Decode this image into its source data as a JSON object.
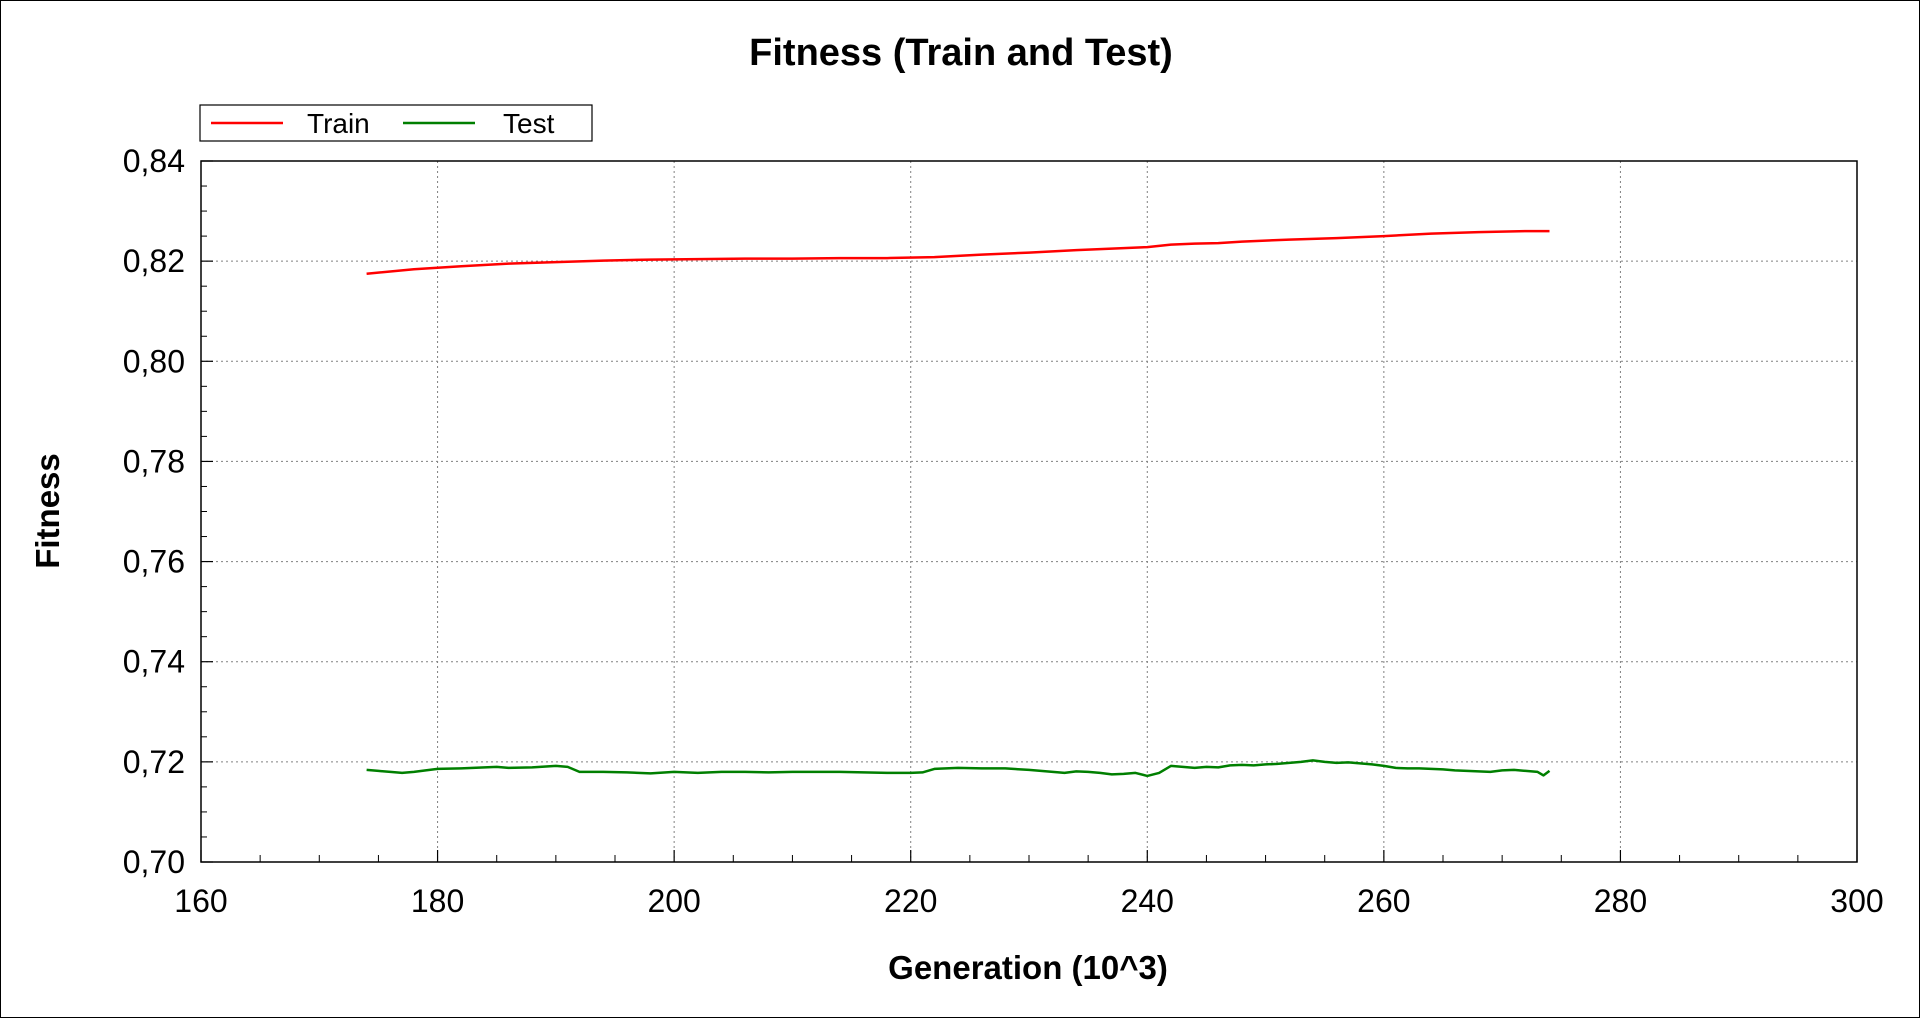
{
  "chart_data": {
    "type": "line",
    "title": "Fitness (Train and Test)",
    "xlabel": "Generation (10^3)",
    "ylabel": "Fitness",
    "xlim": [
      160,
      300
    ],
    "ylim": [
      0.7,
      0.84
    ],
    "x_ticks": [
      160,
      180,
      200,
      220,
      240,
      260,
      280,
      300
    ],
    "x_tick_labels": [
      "160",
      "180",
      "200",
      "220",
      "240",
      "260",
      "280",
      "300"
    ],
    "y_ticks": [
      0.7,
      0.72,
      0.74,
      0.76,
      0.78,
      0.8,
      0.82,
      0.84
    ],
    "y_tick_labels": [
      "0,70",
      "0,72",
      "0,74",
      "0,76",
      "0,78",
      "0,80",
      "0,82",
      "0,84"
    ],
    "grid": true,
    "legend_position": "top-left",
    "series": [
      {
        "name": "Train",
        "color": "#ff0000",
        "x": [
          174,
          178,
          182,
          186,
          190,
          194,
          198,
          202,
          206,
          210,
          214,
          218,
          222,
          226,
          230,
          234,
          238,
          240,
          242,
          244,
          246,
          248,
          252,
          256,
          260,
          264,
          268,
          272,
          274
        ],
        "y": [
          0.8175,
          0.8184,
          0.819,
          0.8195,
          0.8198,
          0.8201,
          0.8203,
          0.8204,
          0.8205,
          0.8205,
          0.8206,
          0.8206,
          0.8208,
          0.8213,
          0.8217,
          0.8222,
          0.8226,
          0.8228,
          0.8233,
          0.8235,
          0.8236,
          0.8239,
          0.8243,
          0.8246,
          0.825,
          0.8255,
          0.8258,
          0.826,
          0.826
        ]
      },
      {
        "name": "Test",
        "color": "#007f00",
        "x": [
          174,
          175,
          176,
          177,
          178,
          179,
          180,
          182,
          184,
          185,
          186,
          188,
          190,
          191,
          192,
          194,
          196,
          198,
          200,
          202,
          204,
          206,
          208,
          210,
          212,
          214,
          216,
          218,
          220,
          221,
          222,
          224,
          226,
          228,
          230,
          232,
          233,
          234,
          235,
          236,
          237,
          238,
          239,
          240,
          241,
          242,
          243,
          244,
          245,
          246,
          247,
          248,
          249,
          250,
          251,
          252,
          253,
          254,
          255,
          256,
          257,
          258,
          259,
          260,
          261,
          262,
          263,
          264,
          265,
          266,
          267,
          268,
          269,
          270,
          271,
          272,
          273,
          273.5,
          274
        ],
        "y": [
          0.7184,
          0.7182,
          0.718,
          0.7178,
          0.718,
          0.7183,
          0.7186,
          0.7187,
          0.7189,
          0.719,
          0.7188,
          0.7189,
          0.7192,
          0.719,
          0.718,
          0.718,
          0.7179,
          0.7177,
          0.718,
          0.7178,
          0.718,
          0.718,
          0.7179,
          0.718,
          0.718,
          0.718,
          0.7179,
          0.7178,
          0.7178,
          0.7179,
          0.7186,
          0.7188,
          0.7187,
          0.7187,
          0.7184,
          0.718,
          0.7178,
          0.7181,
          0.718,
          0.7178,
          0.7175,
          0.7176,
          0.7178,
          0.7172,
          0.7178,
          0.7192,
          0.719,
          0.7188,
          0.719,
          0.7189,
          0.7193,
          0.7194,
          0.7193,
          0.7195,
          0.7196,
          0.7198,
          0.72,
          0.7203,
          0.72,
          0.7198,
          0.7199,
          0.7197,
          0.7195,
          0.7192,
          0.7188,
          0.7187,
          0.7187,
          0.7186,
          0.7185,
          0.7183,
          0.7182,
          0.7181,
          0.718,
          0.7183,
          0.7184,
          0.7182,
          0.718,
          0.7173,
          0.7182
        ]
      }
    ]
  }
}
